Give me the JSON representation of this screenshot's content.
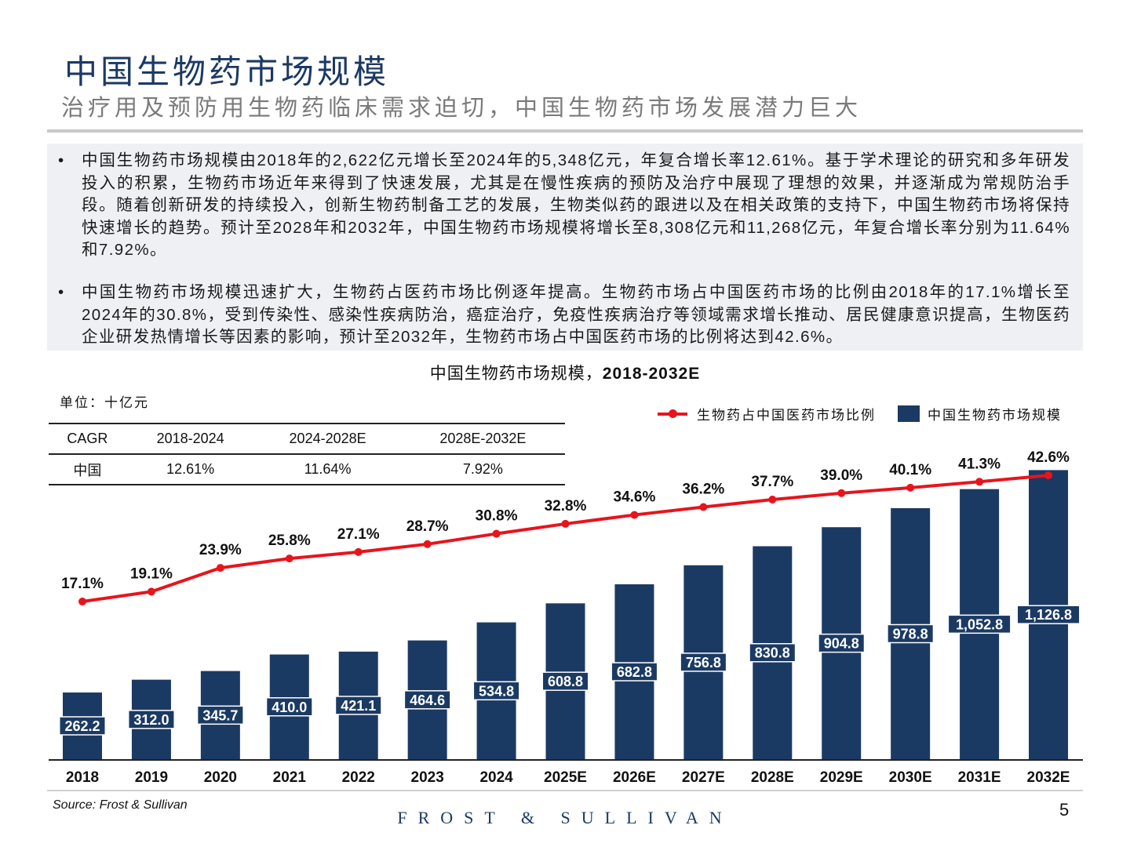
{
  "header": {
    "title": "中国生物药市场规模",
    "subtitle": "治疗用及预防用生物药临床需求迫切，中国生物药市场发展潜力巨大"
  },
  "bullets": [
    "中国生物药市场规模由2018年的2,622亿元增长至2024年的5,348亿元，年复合增长率12.61%。基于学术理论的研究和多年研发投入的积累，生物药市场近年来得到了快速发展，尤其是在慢性疾病的预防及治疗中展现了理想的效果，并逐渐成为常规防治手段。随着创新研发的持续投入，创新生物药制备工艺的发展，生物类似药的跟进以及在相关政策的支持下，中国生物药市场将保持快速增长的趋势。预计至2028年和2032年，中国生物药市场规模将增长至8,308亿元和11,268亿元，年复合增长率分别为11.64%和7.92%。",
    "中国生物药市场规模迅速扩大，生物药占医药市场比例逐年提高。生物药市场占中国医药市场的比例由2018年的17.1%增长至2024年的30.8%，受到传染性、感染性疾病防治，癌症治疗，免疫性疾病治疗等领域需求增长推动、居民健康意识提高，生物医药企业研发热情增长等因素的影响，预计至2032年，生物药市场占中国医药市场的比例将达到42.6%。"
  ],
  "chart_data": {
    "type": "bar+line",
    "title_cn": "中国生物药市场规模，",
    "title_years": "2018-2032E",
    "unit": "单位：十亿元",
    "categories": [
      "2018",
      "2019",
      "2020",
      "2021",
      "2022",
      "2023",
      "2024",
      "2025E",
      "2026E",
      "2027E",
      "2028E",
      "2029E",
      "2030E",
      "2031E",
      "2032E"
    ],
    "series": [
      {
        "name": "中国生物药市场规模",
        "type": "bar",
        "color": "#1b3a63",
        "values": [
          262.2,
          312.0,
          345.7,
          410.0,
          421.1,
          464.6,
          534.8,
          608.8,
          682.8,
          756.8,
          830.8,
          904.8,
          978.8,
          1052.8,
          1126.8
        ],
        "labels": [
          "262.2",
          "312.0",
          "345.7",
          "410.0",
          "421.1",
          "464.6",
          "534.8",
          "608.8",
          "682.8",
          "756.8",
          "830.8",
          "904.8",
          "978.8",
          "1,052.8",
          "1,126.8"
        ]
      },
      {
        "name": "生物药占中国医药市场比例",
        "type": "line",
        "color": "#e8141c",
        "values": [
          17.1,
          19.1,
          23.9,
          25.8,
          27.1,
          28.7,
          30.8,
          32.8,
          34.6,
          36.2,
          37.7,
          39.0,
          40.1,
          41.3,
          42.6
        ],
        "labels": [
          "17.1%",
          "19.1%",
          "23.9%",
          "25.8%",
          "27.1%",
          "28.7%",
          "30.8%",
          "32.8%",
          "34.6%",
          "36.2%",
          "37.7%",
          "39.0%",
          "40.1%",
          "41.3%",
          "42.6%"
        ]
      }
    ],
    "legend_position": "top-right",
    "grid": false
  },
  "cagr_table": {
    "headers": [
      "CAGR",
      "2018-2024",
      "2024-2028E",
      "2028E-2032E"
    ],
    "row": [
      "中国",
      "12.61%",
      "11.64%",
      "7.92%"
    ]
  },
  "footer": {
    "source": "Source: Frost & Sullivan",
    "logo": "FROST & SULLIVAN",
    "page": "5"
  }
}
